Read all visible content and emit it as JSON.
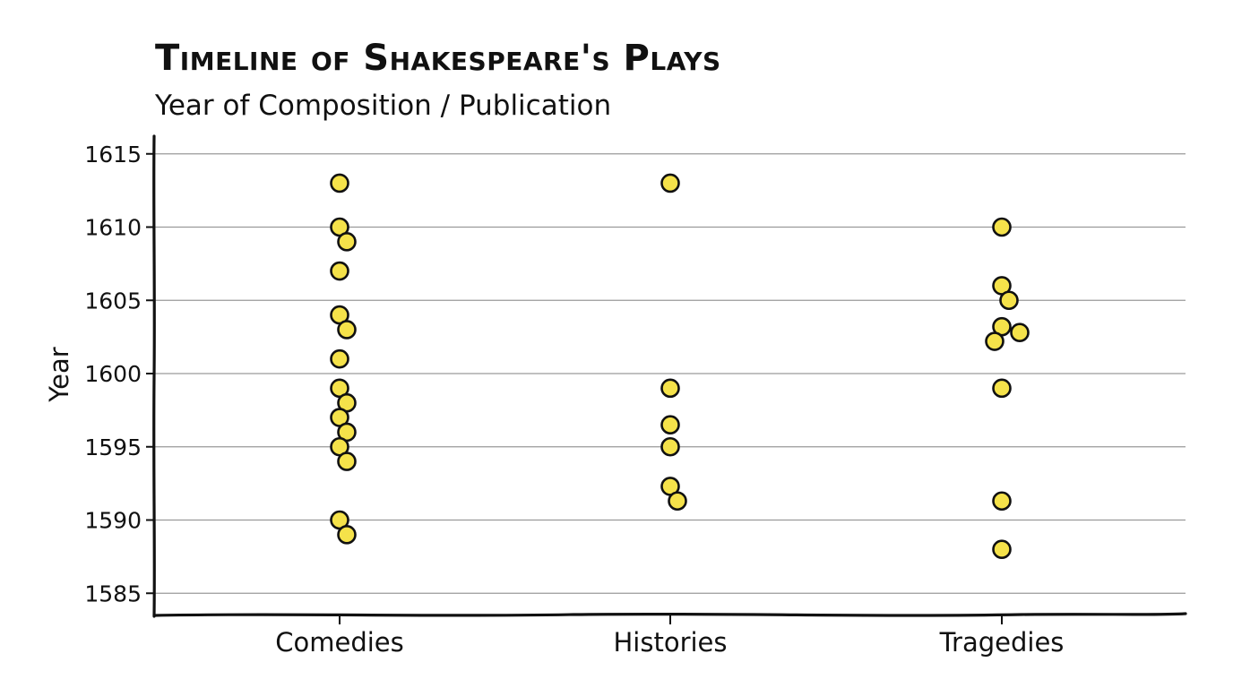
{
  "chart_data": {
    "type": "scatter",
    "title": "Timeline of Shakespeare's Plays",
    "subtitle": "Year of Composition / Publication",
    "ylabel": "Year",
    "categories": [
      "Comedies",
      "Histories",
      "Tragedies"
    ],
    "ylim": [
      1584,
      1616
    ],
    "yticks": [
      1585,
      1590,
      1595,
      1600,
      1605,
      1610,
      1615
    ],
    "grid": true,
    "marker_fill": "#f5e24a",
    "marker_stroke": "#111111",
    "points": [
      {
        "category": "Comedies",
        "year": 1613
      },
      {
        "category": "Comedies",
        "year": 1610
      },
      {
        "category": "Comedies",
        "year": 1609
      },
      {
        "category": "Comedies",
        "year": 1607
      },
      {
        "category": "Comedies",
        "year": 1604
      },
      {
        "category": "Comedies",
        "year": 1603
      },
      {
        "category": "Comedies",
        "year": 1601
      },
      {
        "category": "Comedies",
        "year": 1599
      },
      {
        "category": "Comedies",
        "year": 1598
      },
      {
        "category": "Comedies",
        "year": 1597
      },
      {
        "category": "Comedies",
        "year": 1596
      },
      {
        "category": "Comedies",
        "year": 1595
      },
      {
        "category": "Comedies",
        "year": 1594
      },
      {
        "category": "Comedies",
        "year": 1590
      },
      {
        "category": "Comedies",
        "year": 1589
      },
      {
        "category": "Histories",
        "year": 1613
      },
      {
        "category": "Histories",
        "year": 1599
      },
      {
        "category": "Histories",
        "year": 1596.5
      },
      {
        "category": "Histories",
        "year": 1595
      },
      {
        "category": "Histories",
        "year": 1592.3
      },
      {
        "category": "Histories",
        "year": 1591.3
      },
      {
        "category": "Tragedies",
        "year": 1610
      },
      {
        "category": "Tragedies",
        "year": 1606
      },
      {
        "category": "Tragedies",
        "year": 1605
      },
      {
        "category": "Tragedies",
        "year": 1603.2
      },
      {
        "category": "Tragedies",
        "year": 1602.8
      },
      {
        "category": "Tragedies",
        "year": 1602.2
      },
      {
        "category": "Tragedies",
        "year": 1599
      },
      {
        "category": "Tragedies",
        "year": 1591.3
      },
      {
        "category": "Tragedies",
        "year": 1588
      }
    ]
  }
}
